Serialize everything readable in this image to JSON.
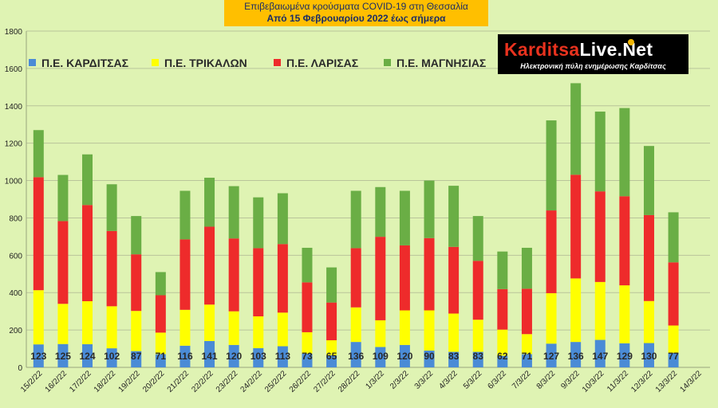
{
  "header": {
    "line1": "Επιβεβαιωμένα κρούσματα COVID-19 στη Θεσσαλία",
    "line2": "Από 15 Φεβρουαρίου 2022 έως σήμερα"
  },
  "logo": {
    "brand_k": "Karditsa",
    "brand_l": "Live.Net",
    "tagline": "Ηλεκτρονική πύλη ενημέρωσης Καρδίτσας"
  },
  "colors": {
    "background": "#dff3b3",
    "gridline": "#b9c49a",
    "karditsa": "#4a8bd6",
    "trikala": "#ffff00",
    "larisa": "#ee2b2b",
    "magnisia": "#6aae45"
  },
  "chart_data": {
    "type": "bar",
    "stacked": true,
    "title": "",
    "xlabel": "",
    "ylabel": "",
    "ylim": [
      0,
      1800
    ],
    "yticks": [
      0,
      200,
      400,
      600,
      800,
      1000,
      1200,
      1400,
      1600,
      1800
    ],
    "grid": true,
    "legend_position": "top-left",
    "categories": [
      "15/2/22",
      "16/2/22",
      "17/2/22",
      "18/2/22",
      "19/2/22",
      "20/2/22",
      "21/2/22",
      "22/2/22",
      "23/2/22",
      "24/2/22",
      "25/2/22",
      "26/2/22",
      "27/2/22",
      "28/2/22",
      "1/3/22",
      "2/3/22",
      "3/3/22",
      "4/3/22",
      "5/3/22",
      "6/3/22",
      "7/3/22",
      "8/3/22",
      "9/3/22",
      "10/3/22",
      "11/3/22",
      "12/3/22",
      "13/3/22",
      "14/3/22"
    ],
    "series": [
      {
        "name": "Π.Ε. ΚΑΡΔΙΤΣΑΣ",
        "color": "#4a8bd6",
        "values": [
          123,
          125,
          124,
          102,
          87,
          71,
          116,
          141,
          120,
          103,
          113,
          73,
          65,
          136,
          109,
          120,
          90,
          83,
          83,
          62,
          71,
          127,
          136,
          147,
          129,
          130,
          77,
          null
        ]
      },
      {
        "name": "Π.Ε. ΤΡΙΚΑΛΩΝ",
        "color": "#ffff00",
        "values": [
          290,
          215,
          230,
          225,
          215,
          115,
          192,
          195,
          180,
          170,
          180,
          115,
          80,
          185,
          143,
          185,
          215,
          205,
          172,
          140,
          107,
          270,
          340,
          310,
          310,
          225,
          147,
          null
        ]
      },
      {
        "name": "Π.Ε. ΛΑΡΙΣΑΣ",
        "color": "#ee2b2b",
        "values": [
          605,
          443,
          515,
          403,
          303,
          200,
          377,
          417,
          390,
          365,
          367,
          267,
          202,
          317,
          447,
          348,
          387,
          357,
          315,
          217,
          243,
          443,
          555,
          485,
          477,
          460,
          338,
          null
        ]
      },
      {
        "name": "Π.Ε. ΜΑΓΝΗΣΙΑΣ",
        "color": "#6aae45",
        "values": [
          252,
          247,
          271,
          250,
          205,
          124,
          260,
          262,
          280,
          272,
          272,
          185,
          188,
          307,
          266,
          292,
          308,
          327,
          240,
          201,
          219,
          482,
          490,
          427,
          472,
          370,
          268,
          null
        ]
      }
    ],
    "data_labels": [
      123,
      125,
      124,
      102,
      87,
      71,
      116,
      141,
      120,
      103,
      113,
      73,
      65,
      136,
      109,
      120,
      90,
      83,
      83,
      62,
      71,
      127,
      136,
      147,
      129,
      130,
      77,
      null
    ]
  }
}
